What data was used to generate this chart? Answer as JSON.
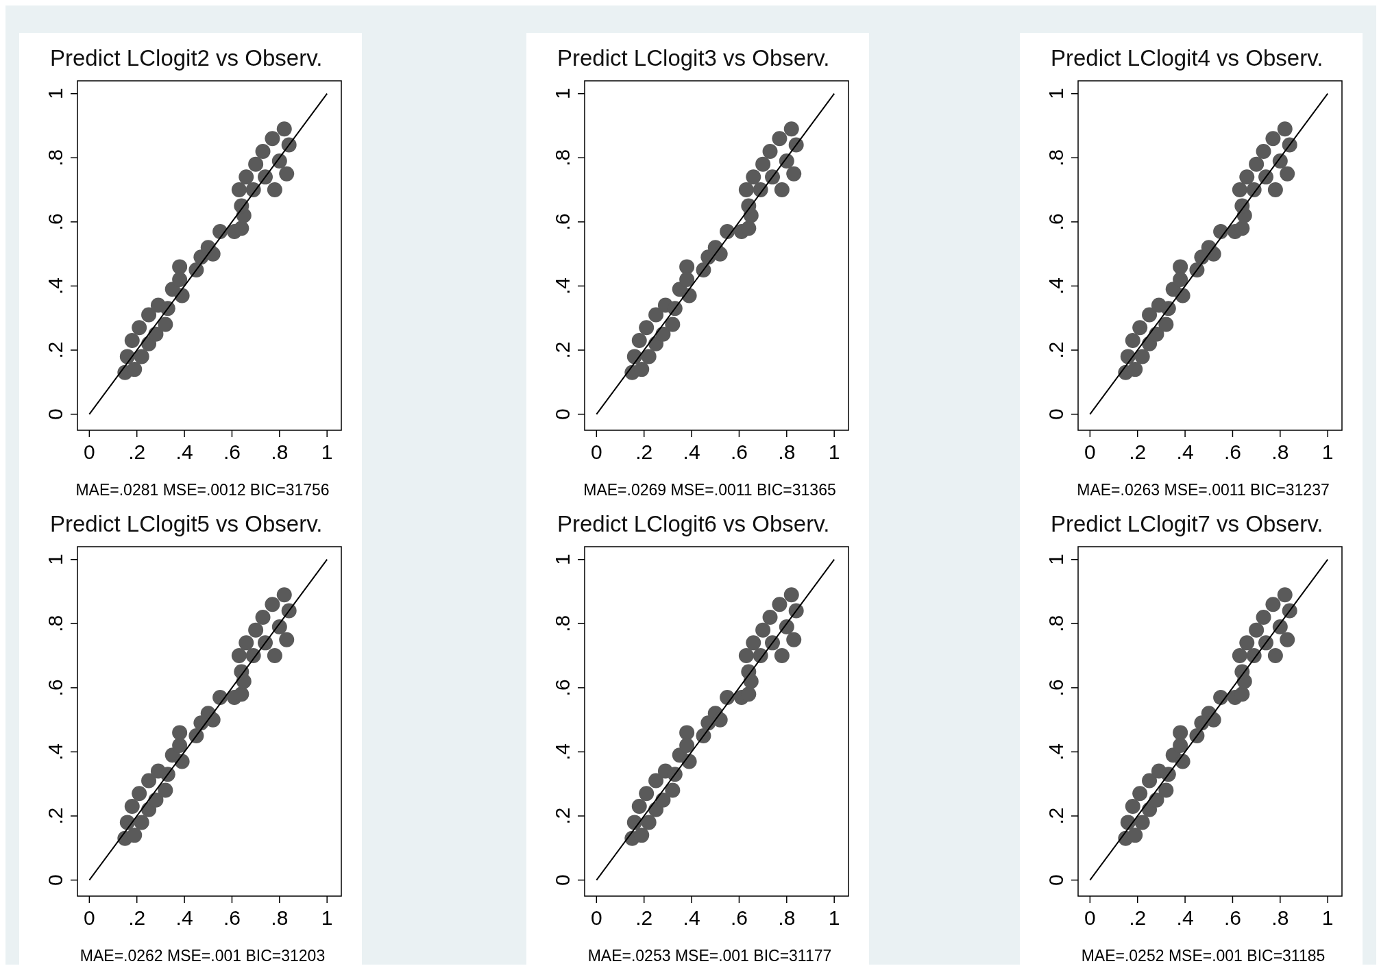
{
  "chart_data": [
    {
      "type": "scatter",
      "title": "Predict LClogit2 vs Observ.",
      "annotations": [
        "MAE=.0281 MSE=.0012 BIC=31756"
      ],
      "xlim": [
        -0.05,
        1.06
      ],
      "ylim": [
        -0.05,
        1.04
      ],
      "xticks": [
        {
          "value": 0,
          "label": "0"
        },
        {
          "value": 0.2,
          "label": ".2"
        },
        {
          "value": 0.4,
          "label": ".4"
        },
        {
          "value": 0.6,
          "label": ".6"
        },
        {
          "value": 0.8,
          "label": ".8"
        },
        {
          "value": 1,
          "label": "1"
        }
      ],
      "yticks": [
        {
          "value": 0,
          "label": "0"
        },
        {
          "value": 0.2,
          "label": ".2"
        },
        {
          "value": 0.4,
          "label": ".4"
        },
        {
          "value": 0.6,
          "label": ".6"
        },
        {
          "value": 0.8,
          "label": ".8"
        },
        {
          "value": 1,
          "label": "1"
        }
      ],
      "grid": false,
      "series": [
        {
          "type": "scatter",
          "marker": "circle",
          "color": "#5a5a5a",
          "x": [
            0.15,
            0.19,
            0.16,
            0.22,
            0.18,
            0.25,
            0.21,
            0.28,
            0.25,
            0.32,
            0.29,
            0.33,
            0.35,
            0.39,
            0.38,
            0.38,
            0.45,
            0.47,
            0.5,
            0.52,
            0.55,
            0.61,
            0.64,
            0.65,
            0.64,
            0.63,
            0.66,
            0.69,
            0.7,
            0.73,
            0.74,
            0.77,
            0.78,
            0.8,
            0.82,
            0.83,
            0.84
          ],
          "values": [
            0.13,
            0.14,
            0.18,
            0.18,
            0.23,
            0.22,
            0.27,
            0.25,
            0.31,
            0.28,
            0.34,
            0.33,
            0.39,
            0.37,
            0.46,
            0.42,
            0.45,
            0.49,
            0.52,
            0.5,
            0.57,
            0.57,
            0.58,
            0.62,
            0.65,
            0.7,
            0.74,
            0.7,
            0.78,
            0.82,
            0.74,
            0.86,
            0.7,
            0.79,
            0.89,
            0.75,
            0.84
          ]
        },
        {
          "type": "line",
          "marker": "none",
          "color": "#000000",
          "x": [
            0,
            1
          ],
          "values": [
            0,
            1
          ]
        }
      ]
    },
    {
      "type": "scatter",
      "title": "Predict LClogit3 vs Observ.",
      "annotations": [
        "MAE=.0269 MSE=.0011 BIC=31365"
      ],
      "xlim": [
        -0.05,
        1.06
      ],
      "ylim": [
        -0.05,
        1.04
      ],
      "xticks": [
        {
          "value": 0,
          "label": "0"
        },
        {
          "value": 0.2,
          "label": ".2"
        },
        {
          "value": 0.4,
          "label": ".4"
        },
        {
          "value": 0.6,
          "label": ".6"
        },
        {
          "value": 0.8,
          "label": ".8"
        },
        {
          "value": 1,
          "label": "1"
        }
      ],
      "yticks": [
        {
          "value": 0,
          "label": "0"
        },
        {
          "value": 0.2,
          "label": ".2"
        },
        {
          "value": 0.4,
          "label": ".4"
        },
        {
          "value": 0.6,
          "label": ".6"
        },
        {
          "value": 0.8,
          "label": ".8"
        },
        {
          "value": 1,
          "label": "1"
        }
      ],
      "grid": false,
      "series": [
        {
          "type": "scatter",
          "marker": "circle",
          "color": "#5a5a5a",
          "x": [
            0.15,
            0.19,
            0.16,
            0.22,
            0.18,
            0.25,
            0.21,
            0.28,
            0.25,
            0.32,
            0.29,
            0.33,
            0.35,
            0.39,
            0.38,
            0.38,
            0.45,
            0.47,
            0.5,
            0.52,
            0.55,
            0.61,
            0.64,
            0.65,
            0.64,
            0.63,
            0.66,
            0.69,
            0.7,
            0.73,
            0.74,
            0.77,
            0.78,
            0.8,
            0.82,
            0.83,
            0.84
          ],
          "values": [
            0.13,
            0.14,
            0.18,
            0.18,
            0.23,
            0.22,
            0.27,
            0.25,
            0.31,
            0.28,
            0.34,
            0.33,
            0.39,
            0.37,
            0.46,
            0.42,
            0.45,
            0.49,
            0.52,
            0.5,
            0.57,
            0.57,
            0.58,
            0.62,
            0.65,
            0.7,
            0.74,
            0.7,
            0.78,
            0.82,
            0.74,
            0.86,
            0.7,
            0.79,
            0.89,
            0.75,
            0.84
          ]
        },
        {
          "type": "line",
          "marker": "none",
          "color": "#000000",
          "x": [
            0,
            1
          ],
          "values": [
            0,
            1
          ]
        }
      ]
    },
    {
      "type": "scatter",
      "title": "Predict LClogit4 vs Observ.",
      "annotations": [
        "MAE=.0263 MSE=.0011 BIC=31237"
      ],
      "xlim": [
        -0.05,
        1.06
      ],
      "ylim": [
        -0.05,
        1.04
      ],
      "xticks": [
        {
          "value": 0,
          "label": "0"
        },
        {
          "value": 0.2,
          "label": ".2"
        },
        {
          "value": 0.4,
          "label": ".4"
        },
        {
          "value": 0.6,
          "label": ".6"
        },
        {
          "value": 0.8,
          "label": ".8"
        },
        {
          "value": 1,
          "label": "1"
        }
      ],
      "yticks": [
        {
          "value": 0,
          "label": "0"
        },
        {
          "value": 0.2,
          "label": ".2"
        },
        {
          "value": 0.4,
          "label": ".4"
        },
        {
          "value": 0.6,
          "label": ".6"
        },
        {
          "value": 0.8,
          "label": ".8"
        },
        {
          "value": 1,
          "label": "1"
        }
      ],
      "grid": false,
      "series": [
        {
          "type": "scatter",
          "marker": "circle",
          "color": "#5a5a5a",
          "x": [
            0.15,
            0.19,
            0.16,
            0.22,
            0.18,
            0.25,
            0.21,
            0.28,
            0.25,
            0.32,
            0.29,
            0.33,
            0.35,
            0.39,
            0.38,
            0.38,
            0.45,
            0.47,
            0.5,
            0.52,
            0.55,
            0.61,
            0.64,
            0.65,
            0.64,
            0.63,
            0.66,
            0.69,
            0.7,
            0.73,
            0.74,
            0.77,
            0.78,
            0.8,
            0.82,
            0.83,
            0.84
          ],
          "values": [
            0.13,
            0.14,
            0.18,
            0.18,
            0.23,
            0.22,
            0.27,
            0.25,
            0.31,
            0.28,
            0.34,
            0.33,
            0.39,
            0.37,
            0.46,
            0.42,
            0.45,
            0.49,
            0.52,
            0.5,
            0.57,
            0.57,
            0.58,
            0.62,
            0.65,
            0.7,
            0.74,
            0.7,
            0.78,
            0.82,
            0.74,
            0.86,
            0.7,
            0.79,
            0.89,
            0.75,
            0.84
          ]
        },
        {
          "type": "line",
          "marker": "none",
          "color": "#000000",
          "x": [
            0,
            1
          ],
          "values": [
            0,
            1
          ]
        }
      ]
    },
    {
      "type": "scatter",
      "title": "Predict LClogit5 vs Observ.",
      "annotations": [
        "MAE=.0262 MSE=.001 BIC=31203"
      ],
      "xlim": [
        -0.05,
        1.06
      ],
      "ylim": [
        -0.05,
        1.04
      ],
      "xticks": [
        {
          "value": 0,
          "label": "0"
        },
        {
          "value": 0.2,
          "label": ".2"
        },
        {
          "value": 0.4,
          "label": ".4"
        },
        {
          "value": 0.6,
          "label": ".6"
        },
        {
          "value": 0.8,
          "label": ".8"
        },
        {
          "value": 1,
          "label": "1"
        }
      ],
      "yticks": [
        {
          "value": 0,
          "label": "0"
        },
        {
          "value": 0.2,
          "label": ".2"
        },
        {
          "value": 0.4,
          "label": ".4"
        },
        {
          "value": 0.6,
          "label": ".6"
        },
        {
          "value": 0.8,
          "label": ".8"
        },
        {
          "value": 1,
          "label": "1"
        }
      ],
      "grid": false,
      "series": [
        {
          "type": "scatter",
          "marker": "circle",
          "color": "#5a5a5a",
          "x": [
            0.15,
            0.19,
            0.16,
            0.22,
            0.18,
            0.25,
            0.21,
            0.28,
            0.25,
            0.32,
            0.29,
            0.33,
            0.35,
            0.39,
            0.38,
            0.38,
            0.45,
            0.47,
            0.5,
            0.52,
            0.55,
            0.61,
            0.64,
            0.65,
            0.64,
            0.63,
            0.66,
            0.69,
            0.7,
            0.73,
            0.74,
            0.77,
            0.78,
            0.8,
            0.82,
            0.83,
            0.84
          ],
          "values": [
            0.13,
            0.14,
            0.18,
            0.18,
            0.23,
            0.22,
            0.27,
            0.25,
            0.31,
            0.28,
            0.34,
            0.33,
            0.39,
            0.37,
            0.46,
            0.42,
            0.45,
            0.49,
            0.52,
            0.5,
            0.57,
            0.57,
            0.58,
            0.62,
            0.65,
            0.7,
            0.74,
            0.7,
            0.78,
            0.82,
            0.74,
            0.86,
            0.7,
            0.79,
            0.89,
            0.75,
            0.84
          ]
        },
        {
          "type": "line",
          "marker": "none",
          "color": "#000000",
          "x": [
            0,
            1
          ],
          "values": [
            0,
            1
          ]
        }
      ]
    },
    {
      "type": "scatter",
      "title": "Predict LClogit6 vs Observ.",
      "annotations": [
        "MAE=.0253 MSE=.001 BIC=31177"
      ],
      "xlim": [
        -0.05,
        1.06
      ],
      "ylim": [
        -0.05,
        1.04
      ],
      "xticks": [
        {
          "value": 0,
          "label": "0"
        },
        {
          "value": 0.2,
          "label": ".2"
        },
        {
          "value": 0.4,
          "label": ".4"
        },
        {
          "value": 0.6,
          "label": ".6"
        },
        {
          "value": 0.8,
          "label": ".8"
        },
        {
          "value": 1,
          "label": "1"
        }
      ],
      "yticks": [
        {
          "value": 0,
          "label": "0"
        },
        {
          "value": 0.2,
          "label": ".2"
        },
        {
          "value": 0.4,
          "label": ".4"
        },
        {
          "value": 0.6,
          "label": ".6"
        },
        {
          "value": 0.8,
          "label": ".8"
        },
        {
          "value": 1,
          "label": "1"
        }
      ],
      "grid": false,
      "series": [
        {
          "type": "scatter",
          "marker": "circle",
          "color": "#5a5a5a",
          "x": [
            0.15,
            0.19,
            0.16,
            0.22,
            0.18,
            0.25,
            0.21,
            0.28,
            0.25,
            0.32,
            0.29,
            0.33,
            0.35,
            0.39,
            0.38,
            0.38,
            0.45,
            0.47,
            0.5,
            0.52,
            0.55,
            0.61,
            0.64,
            0.65,
            0.64,
            0.63,
            0.66,
            0.69,
            0.7,
            0.73,
            0.74,
            0.77,
            0.78,
            0.8,
            0.82,
            0.83,
            0.84
          ],
          "values": [
            0.13,
            0.14,
            0.18,
            0.18,
            0.23,
            0.22,
            0.27,
            0.25,
            0.31,
            0.28,
            0.34,
            0.33,
            0.39,
            0.37,
            0.46,
            0.42,
            0.45,
            0.49,
            0.52,
            0.5,
            0.57,
            0.57,
            0.58,
            0.62,
            0.65,
            0.7,
            0.74,
            0.7,
            0.78,
            0.82,
            0.74,
            0.86,
            0.7,
            0.79,
            0.89,
            0.75,
            0.84
          ]
        },
        {
          "type": "line",
          "marker": "none",
          "color": "#000000",
          "x": [
            0,
            1
          ],
          "values": [
            0,
            1
          ]
        }
      ]
    },
    {
      "type": "scatter",
      "title": "Predict LClogit7 vs Observ.",
      "annotations": [
        "MAE=.0252 MSE=.001 BIC=31185"
      ],
      "xlim": [
        -0.05,
        1.06
      ],
      "ylim": [
        -0.05,
        1.04
      ],
      "xticks": [
        {
          "value": 0,
          "label": "0"
        },
        {
          "value": 0.2,
          "label": ".2"
        },
        {
          "value": 0.4,
          "label": ".4"
        },
        {
          "value": 0.6,
          "label": ".6"
        },
        {
          "value": 0.8,
          "label": ".8"
        },
        {
          "value": 1,
          "label": "1"
        }
      ],
      "yticks": [
        {
          "value": 0,
          "label": "0"
        },
        {
          "value": 0.2,
          "label": ".2"
        },
        {
          "value": 0.4,
          "label": ".4"
        },
        {
          "value": 0.6,
          "label": ".6"
        },
        {
          "value": 0.8,
          "label": ".8"
        },
        {
          "value": 1,
          "label": "1"
        }
      ],
      "grid": false,
      "series": [
        {
          "type": "scatter",
          "marker": "circle",
          "color": "#5a5a5a",
          "x": [
            0.15,
            0.19,
            0.16,
            0.22,
            0.18,
            0.25,
            0.21,
            0.28,
            0.25,
            0.32,
            0.29,
            0.33,
            0.35,
            0.39,
            0.38,
            0.38,
            0.45,
            0.47,
            0.5,
            0.52,
            0.55,
            0.61,
            0.64,
            0.65,
            0.64,
            0.63,
            0.66,
            0.69,
            0.7,
            0.73,
            0.74,
            0.77,
            0.78,
            0.8,
            0.82,
            0.83,
            0.84
          ],
          "values": [
            0.13,
            0.14,
            0.18,
            0.18,
            0.23,
            0.22,
            0.27,
            0.25,
            0.31,
            0.28,
            0.34,
            0.33,
            0.39,
            0.37,
            0.46,
            0.42,
            0.45,
            0.49,
            0.52,
            0.5,
            0.57,
            0.57,
            0.58,
            0.62,
            0.65,
            0.7,
            0.74,
            0.7,
            0.78,
            0.82,
            0.74,
            0.86,
            0.7,
            0.79,
            0.89,
            0.75,
            0.84
          ]
        },
        {
          "type": "line",
          "marker": "none",
          "color": "#000000",
          "x": [
            0,
            1
          ],
          "values": [
            0,
            1
          ]
        }
      ]
    }
  ]
}
